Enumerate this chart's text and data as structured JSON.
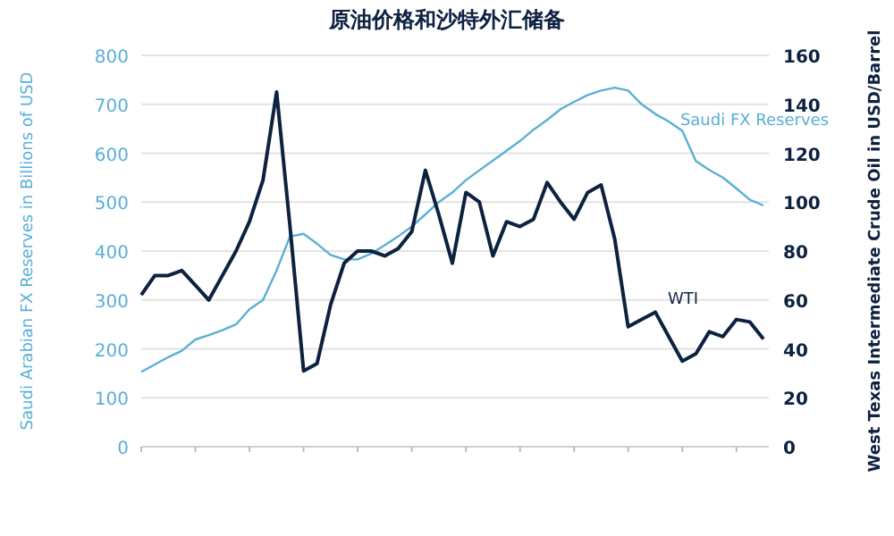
{
  "chart_data": {
    "type": "line",
    "title": "原油价格和沙特外汇储备",
    "ylabel": "Saudi Arabian FX Reserves in Billions of USD",
    "y2label": "West Texas Intermediate Crude Oil in USD/Barrel",
    "categories": [
      null,
      null,
      null,
      null,
      null,
      null,
      null,
      null,
      null,
      null,
      null,
      null,
      null,
      null,
      null,
      null,
      null,
      null,
      null,
      null,
      null,
      null,
      null,
      null,
      null,
      null,
      null,
      null,
      null,
      null,
      null,
      null,
      null,
      null,
      null,
      null,
      null,
      null,
      null,
      null,
      null,
      null,
      null,
      null,
      null,
      null,
      null
    ],
    "ylim": [
      0,
      800
    ],
    "yticks": [
      0,
      100,
      200,
      300,
      400,
      500,
      600,
      700,
      800
    ],
    "y2lim": [
      0,
      160
    ],
    "y2ticks": [
      0,
      20,
      40,
      60,
      80,
      100,
      120,
      140,
      160
    ],
    "grid": "y",
    "series": [
      {
        "name": "Saudi FX Reserves",
        "color": "#5aafd6",
        "values": [
          153,
          168,
          183,
          196,
          219,
          228,
          238,
          250,
          281,
          300,
          360,
          430,
          435,
          415,
          392,
          383,
          383,
          395,
          412,
          430,
          450,
          475,
          500,
          520,
          545,
          565,
          585,
          605,
          625,
          648,
          668,
          690,
          705,
          719,
          728,
          734,
          728,
          700,
          680,
          665,
          646,
          584,
          566,
          550,
          528,
          505,
          493
        ]
      },
      {
        "name": "WTI",
        "color": "#0d2240",
        "axis": "y2",
        "values": [
          62,
          70,
          70,
          72,
          66,
          60,
          70,
          80,
          92,
          109,
          145,
          90,
          31,
          34,
          58,
          75,
          80,
          80,
          78,
          81,
          88,
          113,
          95,
          75,
          104,
          100,
          78,
          92,
          90,
          93,
          108,
          100,
          93,
          104,
          107,
          85,
          49,
          52,
          55,
          45,
          35,
          38,
          47,
          45,
          52,
          51,
          44
        ]
      }
    ]
  }
}
